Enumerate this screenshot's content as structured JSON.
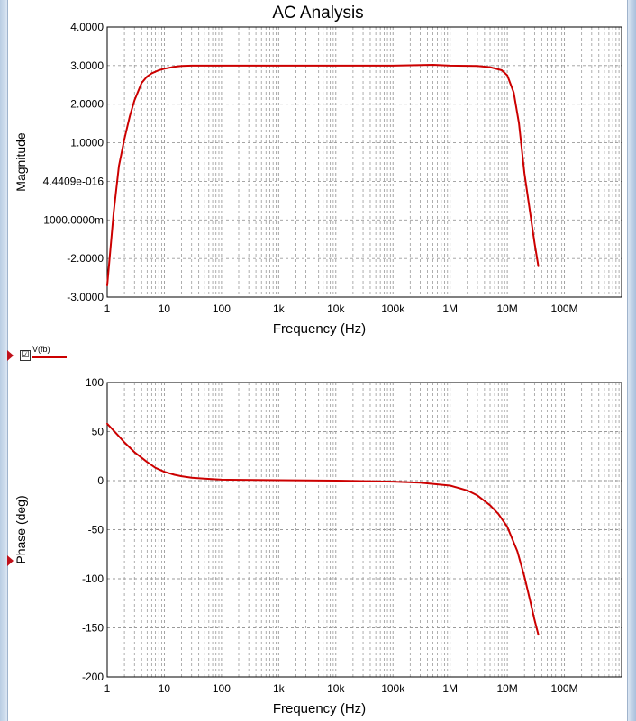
{
  "title": "AC Analysis",
  "legend": {
    "checked": true,
    "check_glyph": "☑",
    "label": "V(fb)",
    "color": "#cc0000"
  },
  "colors": {
    "trace": "#cc0000",
    "grid": "#9a9a9a",
    "frame": "#000000",
    "marker": "#c0101a"
  },
  "chart_data": [
    {
      "type": "line",
      "name": "magnitude",
      "xscale": "log",
      "xlim": [
        1,
        1000000000
      ],
      "xticks": [
        1,
        10,
        100,
        1000,
        10000,
        100000,
        1000000,
        10000000,
        100000000
      ],
      "xtick_labels": [
        "1",
        "10",
        "100",
        "1k",
        "10k",
        "100k",
        "1M",
        "10M",
        "100M"
      ],
      "xlabel": "Frequency (Hz)",
      "ylabel": "Magnitude",
      "ylim": [
        -3,
        4
      ],
      "yticks": [
        4,
        3,
        2,
        1,
        0,
        -1,
        -2,
        -3
      ],
      "ytick_labels": [
        "4.0000",
        "3.0000",
        "2.0000",
        "1.0000",
        "4.4409e-016",
        "-1000.0000m",
        "-2.0000",
        "-3.0000"
      ],
      "grid": true,
      "series": [
        {
          "color": "#cc0000",
          "x": [
            1,
            1.3,
            1.6,
            2,
            2.5,
            3,
            4,
            5,
            6,
            8,
            10,
            15,
            20,
            30,
            100,
            1000,
            10000,
            100000,
            500000,
            1000000,
            3000000,
            5000000,
            8000000,
            10000000,
            13000000,
            16000000,
            20000000,
            25000000,
            30000000,
            35000000
          ],
          "y": [
            -2.7,
            -0.8,
            0.4,
            1.1,
            1.7,
            2.1,
            2.55,
            2.72,
            2.8,
            2.88,
            2.92,
            2.97,
            2.99,
            3.0,
            3.0,
            3.0,
            3.0,
            3.0,
            3.02,
            3.0,
            2.99,
            2.96,
            2.88,
            2.75,
            2.3,
            1.5,
            0.2,
            -0.8,
            -1.6,
            -2.2
          ]
        }
      ]
    },
    {
      "type": "line",
      "name": "phase",
      "xscale": "log",
      "xlim": [
        1,
        1000000000
      ],
      "xticks": [
        1,
        10,
        100,
        1000,
        10000,
        100000,
        1000000,
        10000000,
        100000000
      ],
      "xtick_labels": [
        "1",
        "10",
        "100",
        "1k",
        "10k",
        "100k",
        "1M",
        "10M",
        "100M"
      ],
      "xlabel": "Frequency (Hz)",
      "ylabel": "Phase (deg)",
      "ylim": [
        -200,
        100
      ],
      "yticks": [
        100,
        50,
        0,
        -50,
        -100,
        -150,
        -200
      ],
      "ytick_labels": [
        "100",
        "50",
        "0",
        "-50",
        "-100",
        "-150",
        "-200"
      ],
      "grid": true,
      "series": [
        {
          "color": "#cc0000",
          "x": [
            1,
            1.5,
            2,
            3,
            5,
            7,
            10,
            15,
            20,
            30,
            50,
            100,
            1000,
            10000,
            100000,
            300000,
            1000000,
            2000000,
            3000000,
            5000000,
            7000000,
            10000000,
            15000000,
            20000000,
            25000000,
            30000000,
            35000000
          ],
          "y": [
            58,
            47,
            39,
            29,
            19,
            13,
            9,
            6,
            4.5,
            3,
            2,
            1,
            0.5,
            0,
            -1,
            -2,
            -5,
            -10,
            -15,
            -25,
            -34,
            -47,
            -72,
            -98,
            -122,
            -142,
            -157
          ]
        }
      ]
    }
  ]
}
